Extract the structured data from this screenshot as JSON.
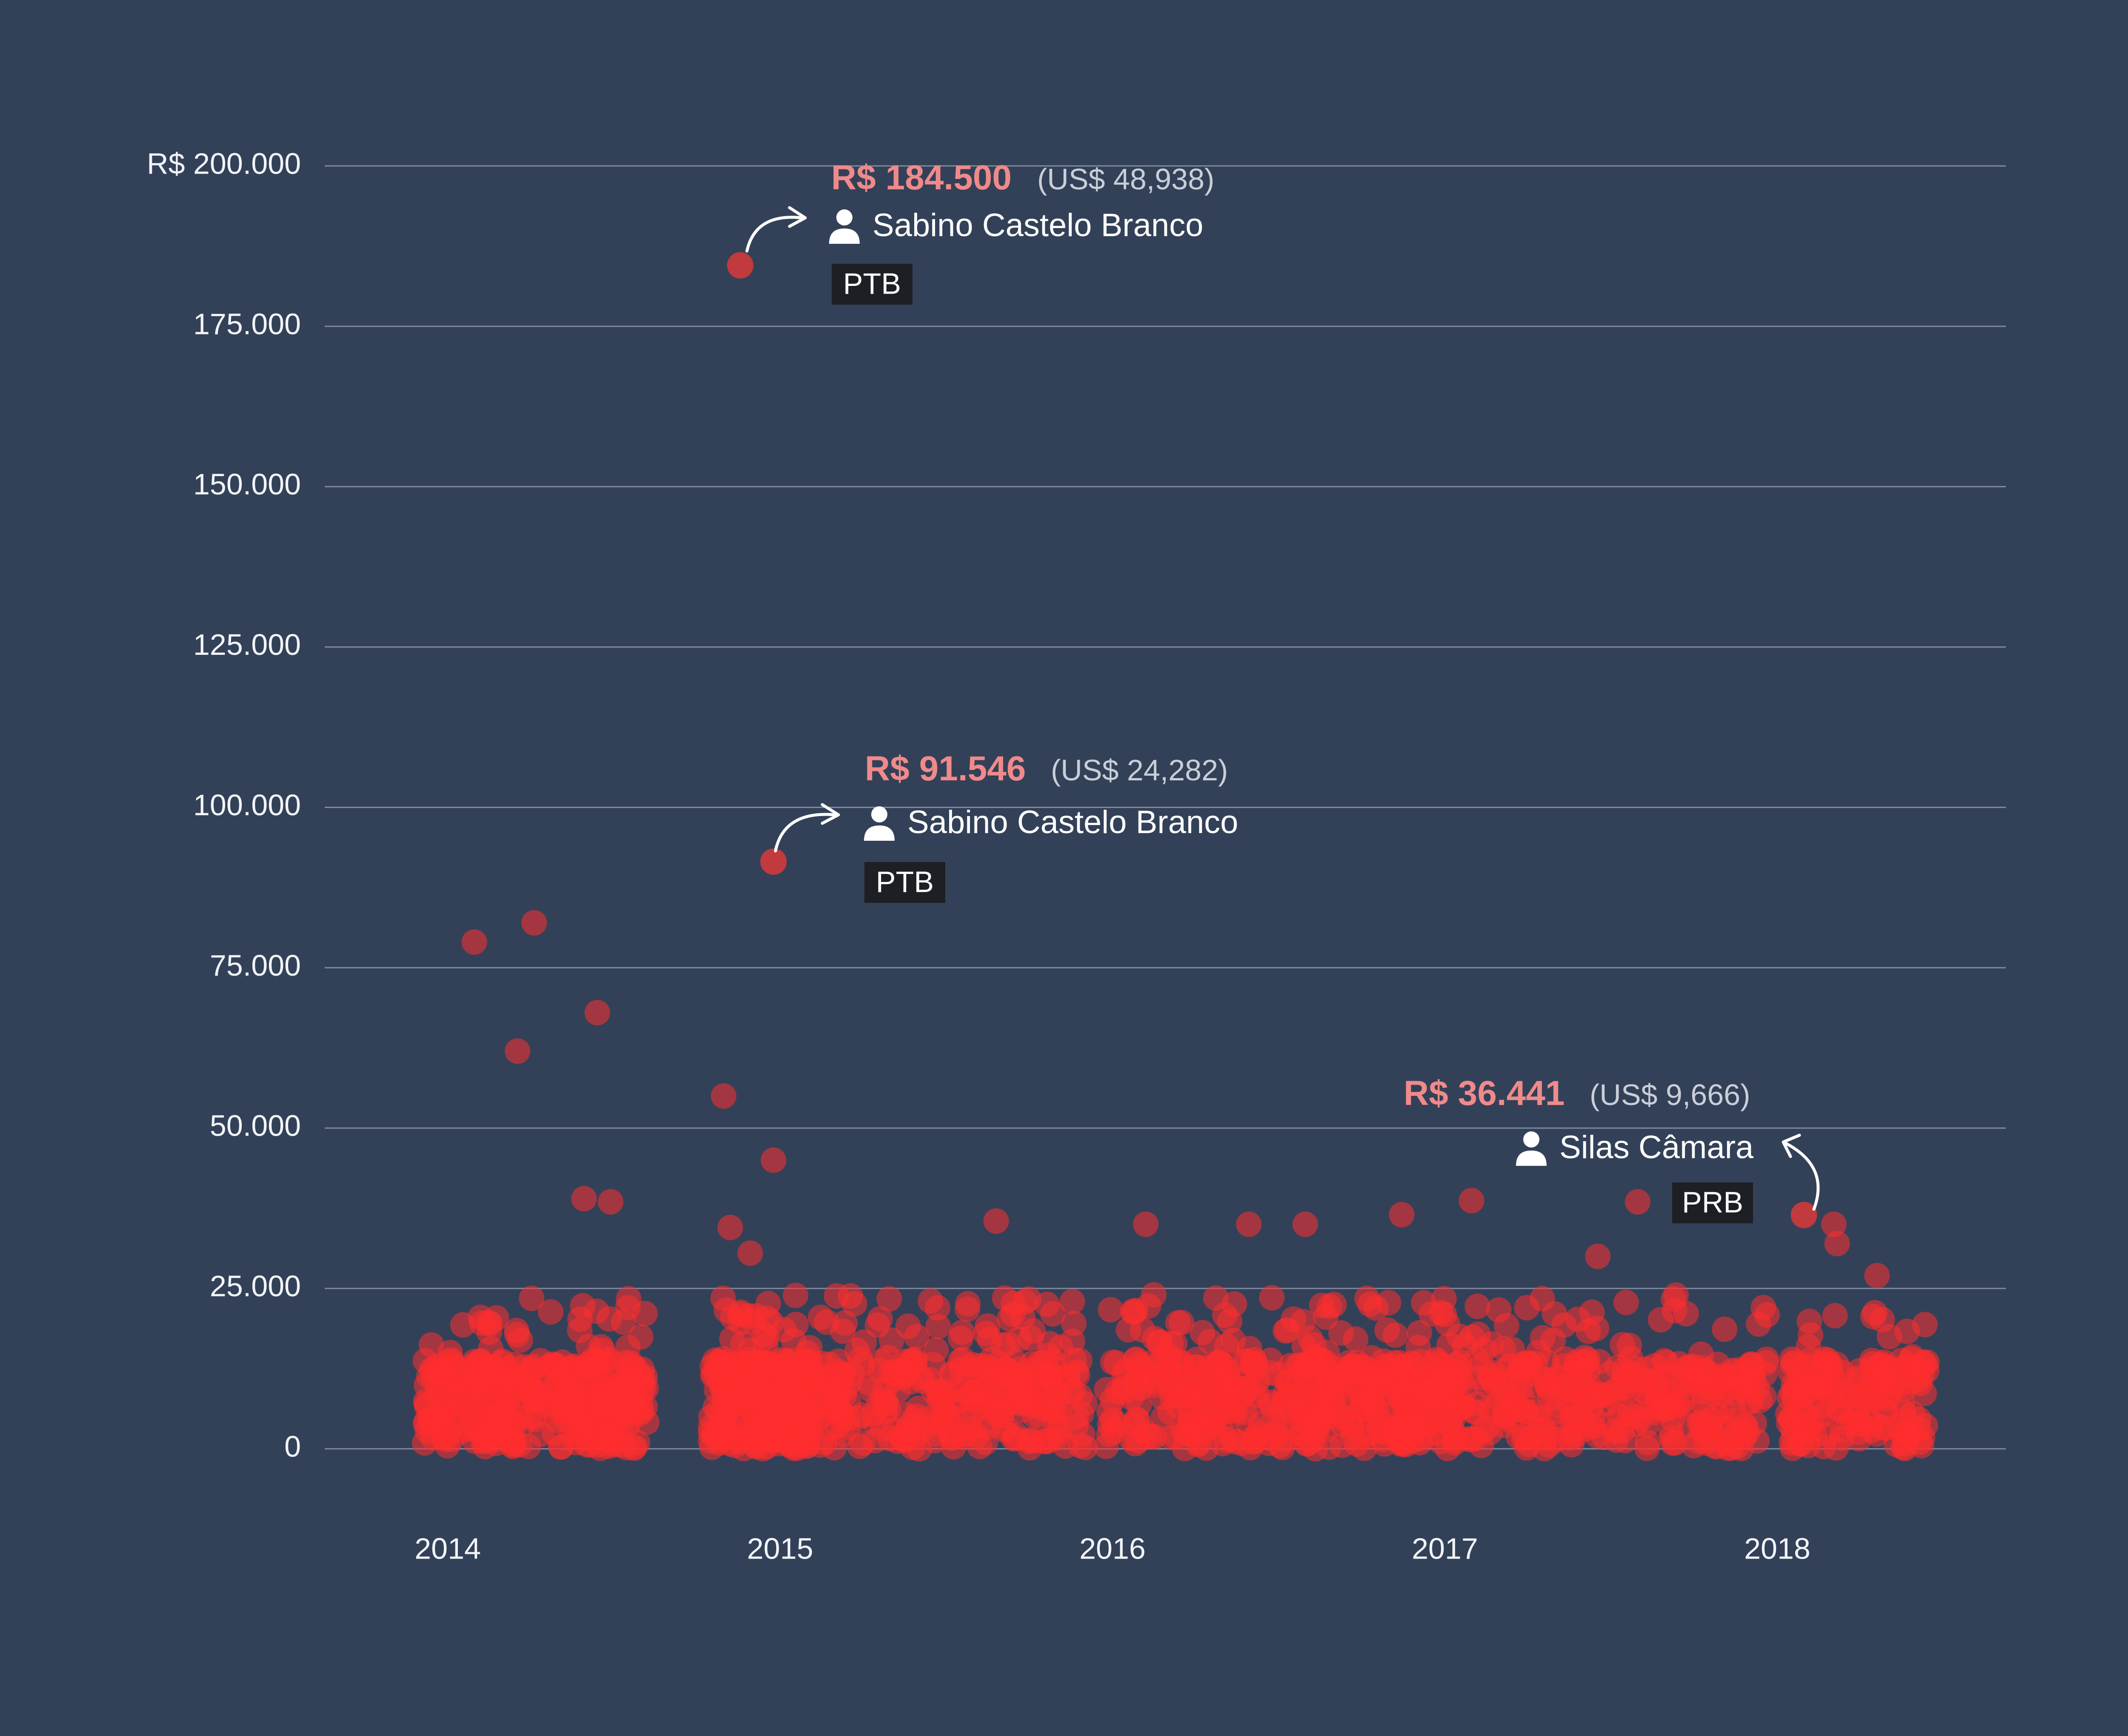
{
  "chart_data": {
    "type": "scatter",
    "title": "",
    "xlabel": "",
    "ylabel": "",
    "x_ticks": [
      "2014",
      "2015",
      "2016",
      "2017",
      "2018"
    ],
    "y_ticks": [
      "0",
      "25.000",
      "50.000",
      "75.000",
      "100.000",
      "125.000",
      "150.000",
      "175.000",
      "R$ 200.000"
    ],
    "xlim": [
      2013.8,
      2018.8
    ],
    "ylim": [
      0,
      200000
    ],
    "grid": true,
    "colors": {
      "background": "#334158",
      "points": "#ff2e2e",
      "highlight_amount": "#f08a8a"
    },
    "outliers": [
      {
        "x": 2014.08,
        "y": 79000
      },
      {
        "x": 2014.26,
        "y": 82000
      },
      {
        "x": 2014.21,
        "y": 62000
      },
      {
        "x": 2014.45,
        "y": 68000
      },
      {
        "x": 2014.83,
        "y": 55000
      },
      {
        "x": 2014.98,
        "y": 45000
      },
      {
        "x": 2014.41,
        "y": 39000
      },
      {
        "x": 2014.49,
        "y": 38500
      },
      {
        "x": 2014.85,
        "y": 34500
      },
      {
        "x": 2014.91,
        "y": 30500
      },
      {
        "x": 2015.65,
        "y": 35500
      },
      {
        "x": 2016.1,
        "y": 35000
      },
      {
        "x": 2016.41,
        "y": 35000
      },
      {
        "x": 2016.58,
        "y": 35000
      },
      {
        "x": 2016.87,
        "y": 36500
      },
      {
        "x": 2017.08,
        "y": 38700
      },
      {
        "x": 2017.58,
        "y": 38500
      },
      {
        "x": 2017.46,
        "y": 30000
      },
      {
        "x": 2018.17,
        "y": 35000
      },
      {
        "x": 2018.18,
        "y": 32000
      },
      {
        "x": 2018.3,
        "y": 27000
      },
      {
        "x": 2018.45,
        "y": 13500
      }
    ],
    "annotations": [
      {
        "x": 2014.88,
        "y": 184500,
        "amount": "R$ 184.500",
        "usd": "(US$ 48,938)",
        "name": "Sabino Castelo Branco",
        "party": "PTB"
      },
      {
        "x": 2014.98,
        "y": 91546,
        "amount": "R$ 91.546",
        "usd": "(US$ 24,282)",
        "name": "Sabino Castelo Branco",
        "party": "PTB"
      },
      {
        "x": 2018.08,
        "y": 36441,
        "amount": "R$ 36.441",
        "usd": "(US$ 9,666)",
        "name": "Silas Câmara",
        "party": "PRB"
      }
    ]
  }
}
